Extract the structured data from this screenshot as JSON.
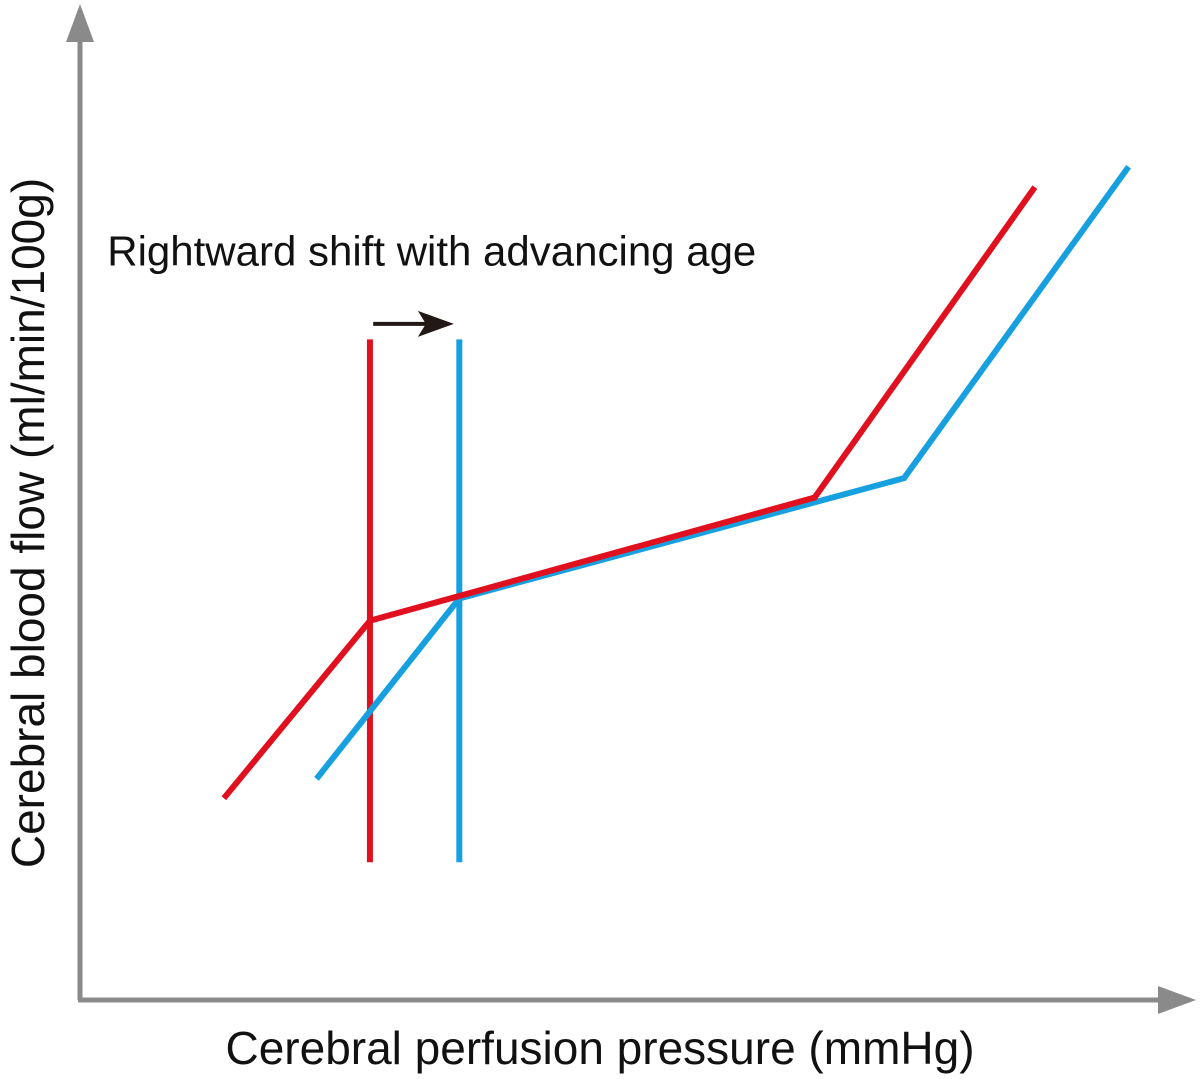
{
  "chart_data": {
    "type": "line",
    "title": "",
    "xlabel": "Cerebral perfusion pressure (mmHg)",
    "ylabel": "Cerebral blood flow (ml/min/100g)",
    "xlim": [
      0,
      100
    ],
    "ylim": [
      0,
      100
    ],
    "x_ticks_shown": false,
    "y_ticks_shown": false,
    "grid": false,
    "legend": "none",
    "series": [
      {
        "color": "#e0101e",
        "points": [
          [
            13.2,
            20.8
          ],
          [
            26.6,
            39.1
          ],
          [
            67.4,
            51.8
          ],
          [
            87.6,
            83.8
          ]
        ]
      },
      {
        "color": "#17a0e0",
        "points": [
          [
            21.7,
            22.8
          ],
          [
            34.8,
            41.4
          ],
          [
            75.6,
            53.8
          ],
          [
            96.2,
            85.9
          ]
        ]
      }
    ],
    "reference_lines": [
      {
        "color": "#e0101e",
        "x": 26.6,
        "y_range": [
          14.2,
          68.1
        ]
      },
      {
        "color": "#17a0e0",
        "x": 34.8,
        "y_range": [
          14.2,
          68.1
        ]
      }
    ],
    "annotations": [
      {
        "text": "Rightward shift with advancing age",
        "anchor": [
          2.5,
          75.7
        ]
      }
    ],
    "arrow": {
      "from": [
        26.9,
        69.7
      ],
      "to": [
        34.3,
        69.7
      ],
      "color": "#231815"
    }
  }
}
